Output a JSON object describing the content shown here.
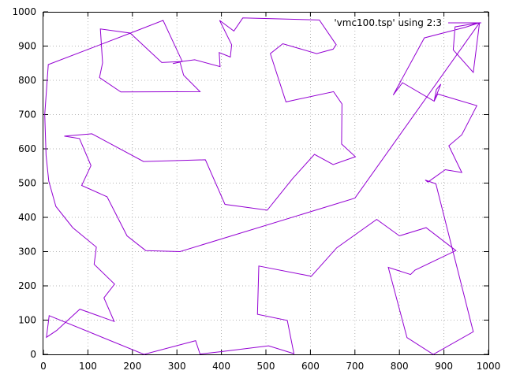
{
  "chart_data": {
    "type": "line",
    "title": "",
    "xlabel": "",
    "ylabel": "",
    "xlim": [
      0,
      1000
    ],
    "ylim": [
      0,
      1000
    ],
    "grid": true,
    "legend_position": "top-right",
    "x_ticks": [
      "0",
      "100",
      "200",
      "300",
      "400",
      "500",
      "600",
      "700",
      "800",
      "900",
      "1000"
    ],
    "y_ticks": [
      "0",
      "100",
      "200",
      "300",
      "400",
      "500",
      "600",
      "700",
      "800",
      "900",
      "1000"
    ],
    "series": [
      {
        "name": "'vmc100.tsp' using 2:3",
        "color": "#9400d3",
        "points": [
          [
            980,
            968
          ],
          [
            966,
            823
          ],
          [
            921,
            889
          ],
          [
            925,
            956
          ],
          [
            980,
            968
          ],
          [
            948,
            955
          ],
          [
            856,
            924
          ],
          [
            786,
            757
          ],
          [
            807,
            793
          ],
          [
            878,
            739
          ],
          [
            883,
            773
          ],
          [
            893,
            789
          ],
          [
            878,
            739
          ],
          [
            886,
            760
          ],
          [
            974,
            726
          ],
          [
            940,
            641
          ],
          [
            911,
            609
          ],
          [
            940,
            531
          ],
          [
            903,
            539
          ],
          [
            864,
            503
          ],
          [
            858,
            509
          ],
          [
            882,
            498
          ],
          [
            966,
            66
          ],
          [
            876,
            0
          ],
          [
            817,
            49
          ],
          [
            775,
            254
          ],
          [
            825,
            233
          ],
          [
            835,
            246
          ],
          [
            927,
            303
          ],
          [
            860,
            370
          ],
          [
            800,
            346
          ],
          [
            749,
            394
          ],
          [
            659,
            311
          ],
          [
            602,
            228
          ],
          [
            484,
            258
          ],
          [
            481,
            117
          ],
          [
            548,
            99
          ],
          [
            563,
            2
          ],
          [
            506,
            25
          ],
          [
            400,
            8
          ],
          [
            352,
            1
          ],
          [
            342,
            40
          ],
          [
            226,
            0
          ],
          [
            13,
            113
          ],
          [
            7,
            50
          ],
          [
            30,
            70
          ],
          [
            82,
            132
          ],
          [
            159,
            96
          ],
          [
            136,
            165
          ],
          [
            160,
            205
          ],
          [
            114,
            263
          ],
          [
            119,
            313
          ],
          [
            66,
            370
          ],
          [
            28,
            432
          ],
          [
            12,
            506
          ],
          [
            6,
            581
          ],
          [
            3,
            700
          ],
          [
            11,
            846
          ],
          [
            198,
            939
          ],
          [
            269,
            975
          ],
          [
            312,
            855
          ],
          [
            291,
            849
          ],
          [
            307,
            853
          ],
          [
            315,
            815
          ],
          [
            352,
            767
          ],
          [
            174,
            766
          ],
          [
            126,
            808
          ],
          [
            133,
            851
          ],
          [
            128,
            950
          ],
          [
            195,
            938
          ],
          [
            266,
            852
          ],
          [
            310,
            855
          ],
          [
            340,
            860
          ],
          [
            397,
            840
          ],
          [
            395,
            881
          ],
          [
            420,
            868
          ],
          [
            423,
            904
          ],
          [
            396,
            975
          ],
          [
            428,
            944
          ],
          [
            448,
            982
          ],
          [
            620,
            976
          ],
          [
            658,
            904
          ],
          [
            651,
            891
          ],
          [
            614,
            878
          ],
          [
            538,
            907
          ],
          [
            510,
            878
          ],
          [
            545,
            737
          ],
          [
            652,
            767
          ],
          [
            671,
            731
          ],
          [
            670,
            614
          ],
          [
            701,
            577
          ],
          [
            651,
            554
          ],
          [
            609,
            584
          ],
          [
            560,
            513
          ],
          [
            503,
            421
          ],
          [
            408,
            438
          ],
          [
            364,
            568
          ],
          [
            225,
            563
          ],
          [
            109,
            644
          ],
          [
            47,
            637
          ],
          [
            81,
            630
          ],
          [
            107,
            551
          ],
          [
            86,
            493
          ],
          [
            143,
            460
          ],
          [
            188,
            346
          ],
          [
            230,
            303
          ],
          [
            307,
            300
          ],
          [
            700,
            456
          ],
          [
            980,
            968
          ]
        ]
      }
    ]
  }
}
